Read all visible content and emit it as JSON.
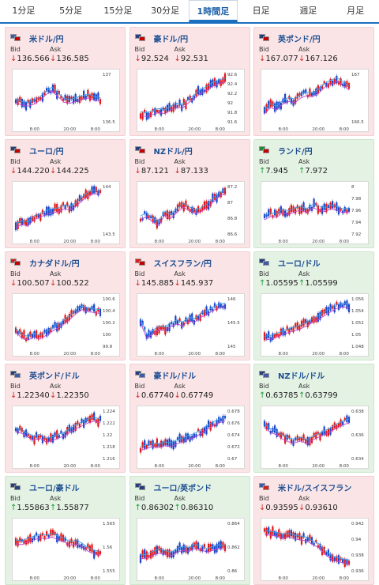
{
  "tabs": [
    "1分足",
    "5分足",
    "15分足",
    "30分足",
    "1時間足",
    "日足",
    "週足",
    "月足"
  ],
  "active_tab": "1時間足",
  "labels": {
    "bid": "Bid",
    "ask": "Ask"
  },
  "pairs": [
    {
      "name": "米ドル/円",
      "trend": "down",
      "bid": "136.566",
      "ask": "136.585",
      "flag_a": "#3c5ba8",
      "flag_b": "#c40000",
      "y_ticks": [
        "137",
        "136.5"
      ],
      "x_ticks": [
        "8:00",
        "20:00",
        "8:00"
      ],
      "line": [
        0.45,
        0.4,
        0.38,
        0.42,
        0.5,
        0.62,
        0.7,
        0.58,
        0.46,
        0.44,
        0.48,
        0.52,
        0.55,
        0.5,
        0.48
      ]
    },
    {
      "name": "豪ドル/円",
      "trend": "down",
      "bid": "92.524",
      "ask": "92.531",
      "flag_a": "#27407a",
      "flag_b": "#c40000",
      "y_ticks": [
        "92.6",
        "92.4",
        "92.2",
        "92",
        "91.8",
        "91.6"
      ],
      "x_ticks": [
        "8:00",
        "20:00",
        "8:00"
      ],
      "line": [
        0.18,
        0.16,
        0.2,
        0.25,
        0.22,
        0.3,
        0.36,
        0.34,
        0.45,
        0.55,
        0.65,
        0.72,
        0.8,
        0.86,
        0.88
      ]
    },
    {
      "name": "英ポンド/円",
      "trend": "down",
      "bid": "167.077",
      "ask": "167.126",
      "flag_a": "#27407a",
      "flag_b": "#c40000",
      "y_ticks": [
        "167",
        "166.5"
      ],
      "x_ticks": [
        "8:00",
        "20:00",
        "8:00"
      ],
      "line": [
        0.22,
        0.35,
        0.3,
        0.42,
        0.48,
        0.45,
        0.55,
        0.6,
        0.58,
        0.66,
        0.78,
        0.85,
        0.9,
        0.82,
        0.72
      ]
    },
    {
      "name": "ユーロ/円",
      "trend": "down",
      "bid": "144.220",
      "ask": "144.225",
      "flag_a": "#27407a",
      "flag_b": "#c40000",
      "y_ticks": [
        "144",
        "143.5"
      ],
      "x_ticks": [
        "8:00",
        "20:00",
        "8:00"
      ],
      "line": [
        0.18,
        0.25,
        0.22,
        0.35,
        0.4,
        0.46,
        0.5,
        0.52,
        0.58,
        0.56,
        0.64,
        0.75,
        0.86,
        0.9,
        0.88
      ]
    },
    {
      "name": "NZドル/円",
      "trend": "down",
      "bid": "87.121",
      "ask": "87.133",
      "flag_a": "#27407a",
      "flag_b": "#c40000",
      "y_ticks": [
        "87.2",
        "87",
        "86.8",
        "86.6"
      ],
      "x_ticks": [
        "8:00",
        "20:00",
        "8:00"
      ],
      "line": [
        0.35,
        0.42,
        0.3,
        0.22,
        0.45,
        0.38,
        0.5,
        0.62,
        0.55,
        0.48,
        0.52,
        0.6,
        0.72,
        0.84,
        0.9
      ]
    },
    {
      "name": "ランド/円",
      "trend": "up",
      "bid": "7.945",
      "ask": "7.972",
      "flag_a": "#1f8a3a",
      "flag_b": "#c40000",
      "y_ticks": [
        "8",
        "7.98",
        "7.96",
        "7.94",
        "7.92"
      ],
      "x_ticks": [
        "8:00",
        "20:00",
        "8:00"
      ],
      "line": [
        0.35,
        0.42,
        0.4,
        0.5,
        0.46,
        0.52,
        0.55,
        0.5,
        0.6,
        0.56,
        0.52,
        0.58,
        0.55,
        0.5,
        0.52
      ]
    },
    {
      "name": "カナダドル/円",
      "trend": "down",
      "bid": "100.507",
      "ask": "100.522",
      "flag_a": "#d42020",
      "flag_b": "#c40000",
      "y_ticks": [
        "100.6",
        "100.4",
        "100.2",
        "100",
        "99.8"
      ],
      "x_ticks": [
        "8:00",
        "20:00",
        "8:00"
      ],
      "line": [
        0.35,
        0.22,
        0.18,
        0.24,
        0.2,
        0.28,
        0.36,
        0.44,
        0.52,
        0.62,
        0.74,
        0.82,
        0.78,
        0.76,
        0.74
      ]
    },
    {
      "name": "スイスフラン/円",
      "trend": "down",
      "bid": "145.885",
      "ask": "145.937",
      "flag_a": "#d42020",
      "flag_b": "#c40000",
      "y_ticks": [
        "146",
        "145.5",
        "145"
      ],
      "x_ticks": [
        "8:00",
        "20:00",
        "8:00"
      ],
      "line": [
        0.55,
        0.22,
        0.3,
        0.4,
        0.38,
        0.46,
        0.52,
        0.48,
        0.58,
        0.56,
        0.66,
        0.72,
        0.8,
        0.86,
        0.88
      ]
    },
    {
      "name": "ユーロ/ドル",
      "trend": "up",
      "bid": "1.05595",
      "ask": "1.05599",
      "flag_a": "#27407a",
      "flag_b": "#3c5ba8",
      "y_ticks": [
        "1.056",
        "1.054",
        "1.052",
        "1.05",
        "1.048"
      ],
      "x_ticks": [
        "8:00",
        "20:00",
        "8:00"
      ],
      "line": [
        0.18,
        0.2,
        0.24,
        0.3,
        0.34,
        0.38,
        0.42,
        0.48,
        0.56,
        0.62,
        0.7,
        0.78,
        0.85,
        0.88,
        0.86
      ]
    },
    {
      "name": "英ポンド/ドル",
      "trend": "down",
      "bid": "1.22340",
      "ask": "1.22350",
      "flag_a": "#27407a",
      "flag_b": "#3c5ba8",
      "y_ticks": [
        "1.224",
        "1.222",
        "1.22",
        "1.218",
        "1.216"
      ],
      "x_ticks": [
        "8:00",
        "20:00",
        "8:00"
      ],
      "line": [
        0.62,
        0.58,
        0.5,
        0.44,
        0.48,
        0.4,
        0.42,
        0.48,
        0.52,
        0.6,
        0.68,
        0.74,
        0.8,
        0.84,
        0.8
      ]
    },
    {
      "name": "豪ドル/ドル",
      "trend": "down",
      "bid": "0.67740",
      "ask": "0.67749",
      "flag_a": "#27407a",
      "flag_b": "#3c5ba8",
      "y_ticks": [
        "0.678",
        "0.676",
        "0.674",
        "0.672",
        "0.67"
      ],
      "x_ticks": [
        "8:00",
        "20:00",
        "8:00"
      ],
      "line": [
        0.22,
        0.26,
        0.3,
        0.28,
        0.32,
        0.3,
        0.36,
        0.4,
        0.46,
        0.5,
        0.58,
        0.66,
        0.74,
        0.8,
        0.84
      ]
    },
    {
      "name": "NZドル/ドル",
      "trend": "up",
      "bid": "0.63785",
      "ask": "0.63799",
      "flag_a": "#27407a",
      "flag_b": "#3c5ba8",
      "y_ticks": [
        "0.638",
        "0.636",
        "0.634"
      ],
      "x_ticks": [
        "8:00",
        "20:00",
        "8:00"
      ],
      "line": [
        0.7,
        0.6,
        0.55,
        0.46,
        0.4,
        0.38,
        0.42,
        0.36,
        0.44,
        0.5,
        0.56,
        0.62,
        0.7,
        0.76,
        0.8
      ]
    },
    {
      "name": "ユーロ/豪ドル",
      "trend": "up",
      "bid": "1.55863",
      "ask": "1.55877",
      "flag_a": "#27407a",
      "flag_b": "#27407a",
      "y_ticks": [
        "1.565",
        "1.56",
        "1.555"
      ],
      "x_ticks": [
        "8:00",
        "20:00",
        "8:00"
      ],
      "line": [
        0.62,
        0.6,
        0.66,
        0.7,
        0.74,
        0.72,
        0.76,
        0.7,
        0.66,
        0.58,
        0.62,
        0.55,
        0.46,
        0.4,
        0.38
      ]
    },
    {
      "name": "ユーロ/英ポンド",
      "trend": "up",
      "bid": "0.86302",
      "ask": "0.86310",
      "flag_a": "#27407a",
      "flag_b": "#27407a",
      "y_ticks": [
        "0.864",
        "0.862",
        "0.86"
      ],
      "x_ticks": [
        "8:00",
        "20:00",
        "8:00"
      ],
      "line": [
        0.3,
        0.32,
        0.38,
        0.42,
        0.4,
        0.36,
        0.44,
        0.48,
        0.46,
        0.52,
        0.5,
        0.44,
        0.48,
        0.52,
        0.5
      ]
    },
    {
      "name": "米ドル/スイスフラン",
      "trend": "down",
      "bid": "0.93595",
      "ask": "0.93610",
      "flag_a": "#3c5ba8",
      "flag_b": "#d42020",
      "y_ticks": [
        "0.942",
        "0.94",
        "0.938",
        "0.936"
      ],
      "x_ticks": [
        "8:00",
        "20:00",
        "8:00"
      ],
      "line": [
        0.82,
        0.8,
        0.78,
        0.74,
        0.76,
        0.72,
        0.7,
        0.68,
        0.6,
        0.54,
        0.4,
        0.3,
        0.25,
        0.22,
        0.2
      ]
    }
  ]
}
